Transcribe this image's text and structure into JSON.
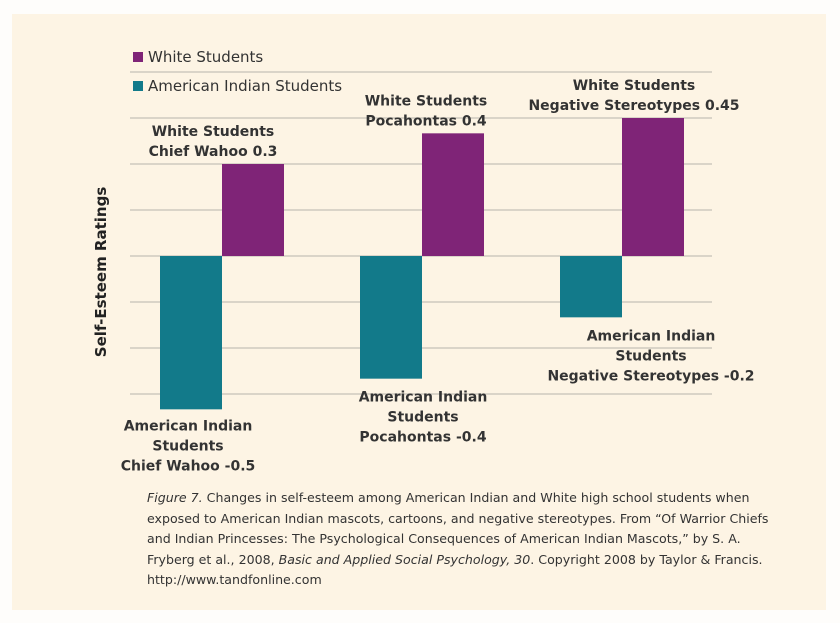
{
  "chart_data": {
    "type": "bar",
    "title": "",
    "xlabel": "",
    "ylabel": "Self-Esteem Ratings",
    "ylim": [
      -0.6,
      0.6
    ],
    "grid": true,
    "gridlines": [
      0.6,
      0.45,
      0.3,
      0.15,
      0,
      -0.15,
      -0.3,
      -0.45
    ],
    "legend_position": "top-left",
    "categories": [
      "Chief Wahoo",
      "Pocahontas",
      "Negative Stereotypes"
    ],
    "series": [
      {
        "name": "American Indian Students",
        "color": "#127a8a",
        "values": [
          -0.5,
          -0.4,
          -0.2
        ],
        "data_labels": [
          [
            "American Indian",
            "Students",
            "Chief Wahoo -0.5"
          ],
          [
            "American Indian",
            "Students",
            "Pocahontas -0.4"
          ],
          [
            "American Indian",
            "Students",
            "Negative Stereotypes -0.2"
          ]
        ]
      },
      {
        "name": "White Students",
        "color": "#7f2477",
        "values": [
          0.3,
          0.4,
          0.45
        ],
        "data_labels": [
          [
            "White Students",
            "Chief Wahoo 0.3"
          ],
          [
            "White Students",
            "Pocahontas 0.4"
          ],
          [
            "White Students",
            "Negative Stereotypes 0.45"
          ]
        ]
      }
    ],
    "legend": [
      {
        "name": "White Students",
        "color": "#7f2477"
      },
      {
        "name": "American Indian Students",
        "color": "#127a8a"
      }
    ]
  },
  "caption": {
    "figure_label": "Figure 7.",
    "text_1": " Changes in self-esteem among American Indian and White high school students when exposed to American Indian mascots, cartoons, and negative stereotypes. From “Of Warrior Chiefs and Indian Princesses: The Psychological Consequences of American Indian Mascots,” by S. A. Fryberg et al., 2008, ",
    "journal": "Basic and Applied Social Psychology, 30",
    "text_2": ". Copyright 2008 by Taylor & Francis. http://www.tandfonline.com"
  },
  "colors": {
    "background": "#fdf4e4",
    "gridline": "#cfc9bf",
    "text": "#333333"
  }
}
